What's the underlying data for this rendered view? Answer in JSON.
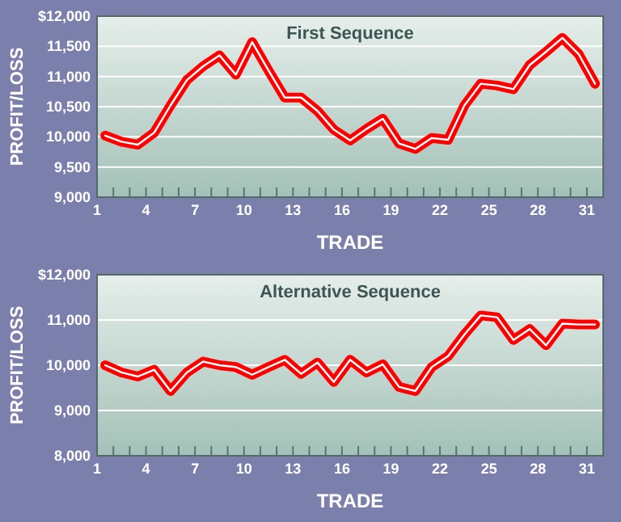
{
  "chart_data": [
    {
      "type": "line",
      "title": "First Sequence",
      "xlabel": "TRADE",
      "ylabel": "PROFIT/LOSS",
      "grid": "y",
      "marker": "none",
      "line_style": "solid",
      "x": [
        1.5,
        2.5,
        3.5,
        4.5,
        5.5,
        6.5,
        7.5,
        8.5,
        9.5,
        10.5,
        11.5,
        12.5,
        13.5,
        14.5,
        15.5,
        16.5,
        17.5,
        18.5,
        19.5,
        20.5,
        21.5,
        22.5,
        23.5,
        24.5,
        25.5,
        26.5,
        27.5,
        28.5,
        29.5,
        30.5,
        31.5
      ],
      "series": [
        {
          "color": "#ff0000",
          "values": [
            10020,
            9920,
            9870,
            10070,
            10520,
            10940,
            11170,
            11350,
            11030,
            11570,
            11100,
            10650,
            10650,
            10430,
            10120,
            9940,
            10130,
            10300,
            9890,
            9800,
            9980,
            9950,
            10520,
            10880,
            10850,
            10790,
            11190,
            11410,
            11640,
            11370,
            10880
          ]
        }
      ],
      "xlim": [
        1,
        32
      ],
      "xticks": [
        1,
        {
          "value": 2,
          "label": null
        },
        {
          "value": 3,
          "label": null
        },
        4,
        {
          "value": 5,
          "label": null
        },
        {
          "value": 6,
          "label": null
        },
        7,
        {
          "value": 8,
          "label": null
        },
        {
          "value": 9,
          "label": null
        },
        10,
        {
          "value": 11,
          "label": null
        },
        {
          "value": 12,
          "label": null
        },
        13,
        {
          "value": 14,
          "label": null
        },
        {
          "value": 15,
          "label": null
        },
        16,
        {
          "value": 17,
          "label": null
        },
        {
          "value": 18,
          "label": null
        },
        19,
        {
          "value": 20,
          "label": null
        },
        {
          "value": 21,
          "label": null
        },
        22,
        {
          "value": 23,
          "label": null
        },
        {
          "value": 24,
          "label": null
        },
        25,
        {
          "value": 26,
          "label": null
        },
        {
          "value": 27,
          "label": null
        },
        28,
        {
          "value": 29,
          "label": null
        },
        {
          "value": 30,
          "label": null
        },
        31,
        {
          "value": 32,
          "label": null
        }
      ],
      "ylim": [
        9000,
        12000
      ],
      "yticks": [
        {
          "value": 9000,
          "label": "9,000"
        },
        {
          "value": 9500,
          "label": "9,500"
        },
        {
          "value": 10000,
          "label": "10,000"
        },
        {
          "value": 10500,
          "label": "10,500"
        },
        {
          "value": 11000,
          "label": "11,000"
        },
        {
          "value": 11500,
          "label": "11,500"
        },
        {
          "value": 12000,
          "label": "$12,000"
        }
      ]
    },
    {
      "type": "line",
      "title": "Alternative Sequence",
      "xlabel": "TRADE",
      "ylabel": "PROFIT/LOSS",
      "grid": "y",
      "marker": "none",
      "line_style": "solid",
      "x": [
        1.5,
        2.5,
        3.5,
        4.5,
        5.5,
        6.5,
        7.5,
        8.5,
        9.5,
        10.5,
        11.5,
        12.5,
        13.5,
        14.5,
        15.5,
        16.5,
        17.5,
        18.5,
        19.5,
        20.5,
        21.5,
        22.5,
        23.5,
        24.5,
        25.5,
        26.5,
        27.5,
        28.5,
        29.5,
        30.5,
        31.5
      ],
      "series": [
        {
          "color": "#ff0000",
          "values": [
            10000,
            9840,
            9750,
            9900,
            9430,
            9840,
            10080,
            10000,
            9960,
            9790,
            9960,
            10120,
            9810,
            10060,
            9630,
            10120,
            9840,
            10020,
            9520,
            9430,
            9960,
            10200,
            10680,
            11100,
            11060,
            10560,
            10800,
            10440,
            10920,
            10900,
            10900
          ]
        }
      ],
      "xlim": [
        1,
        32
      ],
      "xticks": [
        1,
        {
          "value": 2,
          "label": null
        },
        {
          "value": 3,
          "label": null
        },
        4,
        {
          "value": 5,
          "label": null
        },
        {
          "value": 6,
          "label": null
        },
        7,
        {
          "value": 8,
          "label": null
        },
        {
          "value": 9,
          "label": null
        },
        10,
        {
          "value": 11,
          "label": null
        },
        {
          "value": 12,
          "label": null
        },
        13,
        {
          "value": 14,
          "label": null
        },
        {
          "value": 15,
          "label": null
        },
        16,
        {
          "value": 17,
          "label": null
        },
        {
          "value": 18,
          "label": null
        },
        19,
        {
          "value": 20,
          "label": null
        },
        {
          "value": 21,
          "label": null
        },
        22,
        {
          "value": 23,
          "label": null
        },
        {
          "value": 24,
          "label": null
        },
        25,
        {
          "value": 26,
          "label": null
        },
        {
          "value": 27,
          "label": null
        },
        28,
        {
          "value": 29,
          "label": null
        },
        {
          "value": 30,
          "label": null
        },
        31,
        {
          "value": 32,
          "label": null
        }
      ],
      "ylim": [
        8000,
        12000
      ],
      "yticks": [
        {
          "value": 8000,
          "label": "8,000"
        },
        {
          "value": 9000,
          "label": "9,000"
        },
        {
          "value": 10000,
          "label": "10,000"
        },
        {
          "value": 11000,
          "label": "11,000"
        },
        {
          "value": 12000,
          "label": "$12,000"
        }
      ]
    }
  ]
}
